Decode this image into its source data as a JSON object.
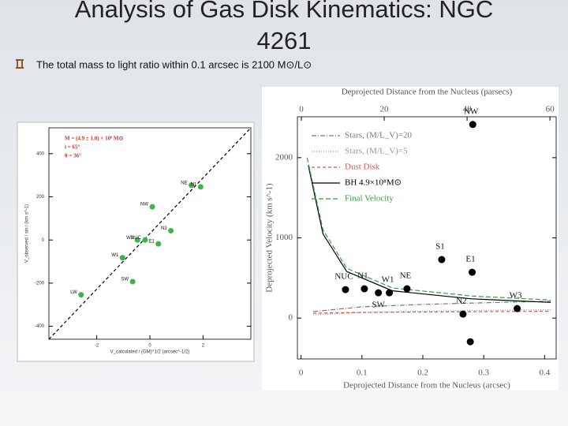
{
  "title": "Analysis of Gas Disk Kinematics: NGC 4261",
  "bullet": "The total mass to light ratio within 0.1 arcsec is 2100 M⊙/L⊙",
  "chart_data": [
    {
      "type": "scatter",
      "annotations": [
        "M = (4.9 ± 1.0) × 10⁸ M⊙",
        "i = 65°",
        "θ = 36°"
      ],
      "xlabel": "V_calculated / (GM)^1/2 (arcsec^-1/2)",
      "ylabel": "V_observed / sin i (km s^-1)",
      "xlim": [
        -3.8,
        3.8
      ],
      "ylim": [
        -460,
        520
      ],
      "xticks": [
        -2,
        0,
        2
      ],
      "yticks": [
        400,
        200,
        0,
        -200,
        -400
      ],
      "color": "#3cb44b",
      "points": {
        "labels": [
          "LW",
          "W1",
          "SW",
          "W2",
          "NUC",
          "NW",
          "E1",
          "N3",
          "NE",
          "N1"
        ],
        "x": [
          -2.59,
          -1.03,
          -0.65,
          -0.47,
          -0.18,
          0.09,
          0.32,
          0.79,
          1.56,
          1.91
        ],
        "values": [
          -254,
          -82,
          -193,
          0,
          0,
          154,
          -18,
          43,
          254,
          246
        ]
      },
      "lines": [
        {
          "color": "#000000",
          "x": [
            -3.8,
            3.8
          ],
          "values": [
            -460,
            520
          ]
        }
      ]
    },
    {
      "type": "scatter",
      "xlabel": "Deprojected Distance from the Nucleus (arcsec)",
      "x2label": "Deprojected Distance from the Nucleus (parsecs)",
      "ylabel": "Deprojected Velocity (km s^-1)",
      "xlim": [
        -0.006,
        0.419
      ],
      "x2lim": [
        -0.95,
        61.5
      ],
      "ylim": [
        -510,
        2510
      ],
      "xticks": [
        0,
        0.1,
        0.2,
        0.3,
        0.4
      ],
      "x2ticks": [
        0,
        20,
        40,
        60
      ],
      "yticks": [
        0,
        1000,
        2000
      ],
      "color": "#000000",
      "legend": "upper left",
      "points": {
        "labels": [
          "NUC",
          "N1",
          "SW",
          "W1",
          "NE",
          "S1",
          "E1",
          "N2",
          "W3",
          "NW",
          null
        ],
        "x": [
          0.073,
          0.104,
          0.127,
          0.145,
          0.174,
          0.231,
          0.281,
          0.266,
          0.355,
          0.282,
          0.278
        ],
        "values": [
          355,
          365,
          315,
          315,
          365,
          729,
          571,
          49,
          118,
          2414,
          -296
        ]
      },
      "series": [
        {
          "name": "Stars, (M/L_V)=20",
          "color": "#777777",
          "dash": "6 2 1 2",
          "x": [
            0.02,
            0.1,
            0.2,
            0.3,
            0.41
          ],
          "values": [
            80,
            140,
            170,
            190,
            210
          ]
        },
        {
          "name": "Stars, (M/L_V)=5",
          "color": "#999999",
          "dash": "1 2",
          "x": [
            0.02,
            0.1,
            0.2,
            0.3,
            0.41
          ],
          "values": [
            40,
            70,
            85,
            95,
            105
          ]
        },
        {
          "name": "Dust Disk",
          "color": "#d9534f",
          "dash": "4 3",
          "x": [
            0.02,
            0.1,
            0.2,
            0.3,
            0.41
          ],
          "values": [
            60,
            70,
            75,
            80,
            85
          ]
        },
        {
          "name": "BH 4.9×10⁸M⊙",
          "color": "#000000",
          "dash": "",
          "x": [
            0.012,
            0.036,
            0.075,
            0.15,
            0.28,
            0.41
          ],
          "values": [
            1900,
            1050,
            580,
            340,
            240,
            195
          ]
        },
        {
          "name": "Final Velocity",
          "color": "#2e9e3e",
          "dash": "6 3",
          "x": [
            0.01,
            0.036,
            0.075,
            0.15,
            0.28,
            0.41
          ],
          "values": [
            2000,
            1100,
            620,
            375,
            275,
            225
          ]
        }
      ]
    }
  ]
}
